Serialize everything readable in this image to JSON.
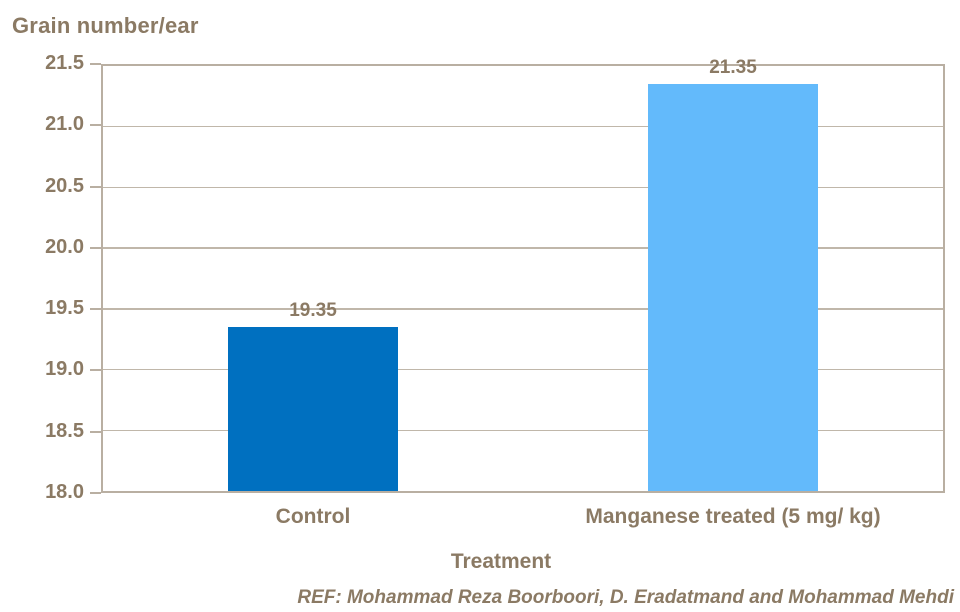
{
  "chart_data": {
    "type": "bar",
    "title": "Grain number/ear",
    "xlabel": "Treatment",
    "ylabel": "Grain number/ear",
    "categories": [
      "Control",
      "Manganese treated (5 mg/ kg)"
    ],
    "values": [
      19.35,
      21.35
    ],
    "data_labels": [
      "19.35",
      "21.35"
    ],
    "bar_colors": [
      "#0070C0",
      "#63BAFB"
    ],
    "ylim": [
      18.0,
      21.5
    ],
    "ytick_step": 0.5,
    "ytick_labels": [
      "18.0",
      "18.5",
      "19.0",
      "19.5",
      "20.0",
      "20.5",
      "21.0",
      "21.5"
    ],
    "grid": true,
    "legend_position": "none",
    "footer": "REF: Mohammad Reza Boorboori, D. Eradatmand and Mohammad Mehdi"
  },
  "colors": {
    "text": "#8B7A64",
    "gridline": "#C0B7AA",
    "axis_border": "#B9AFA2",
    "bar_control": "#0070C0",
    "bar_manganese": "#63BAFB",
    "background": "#FFFFFF"
  }
}
